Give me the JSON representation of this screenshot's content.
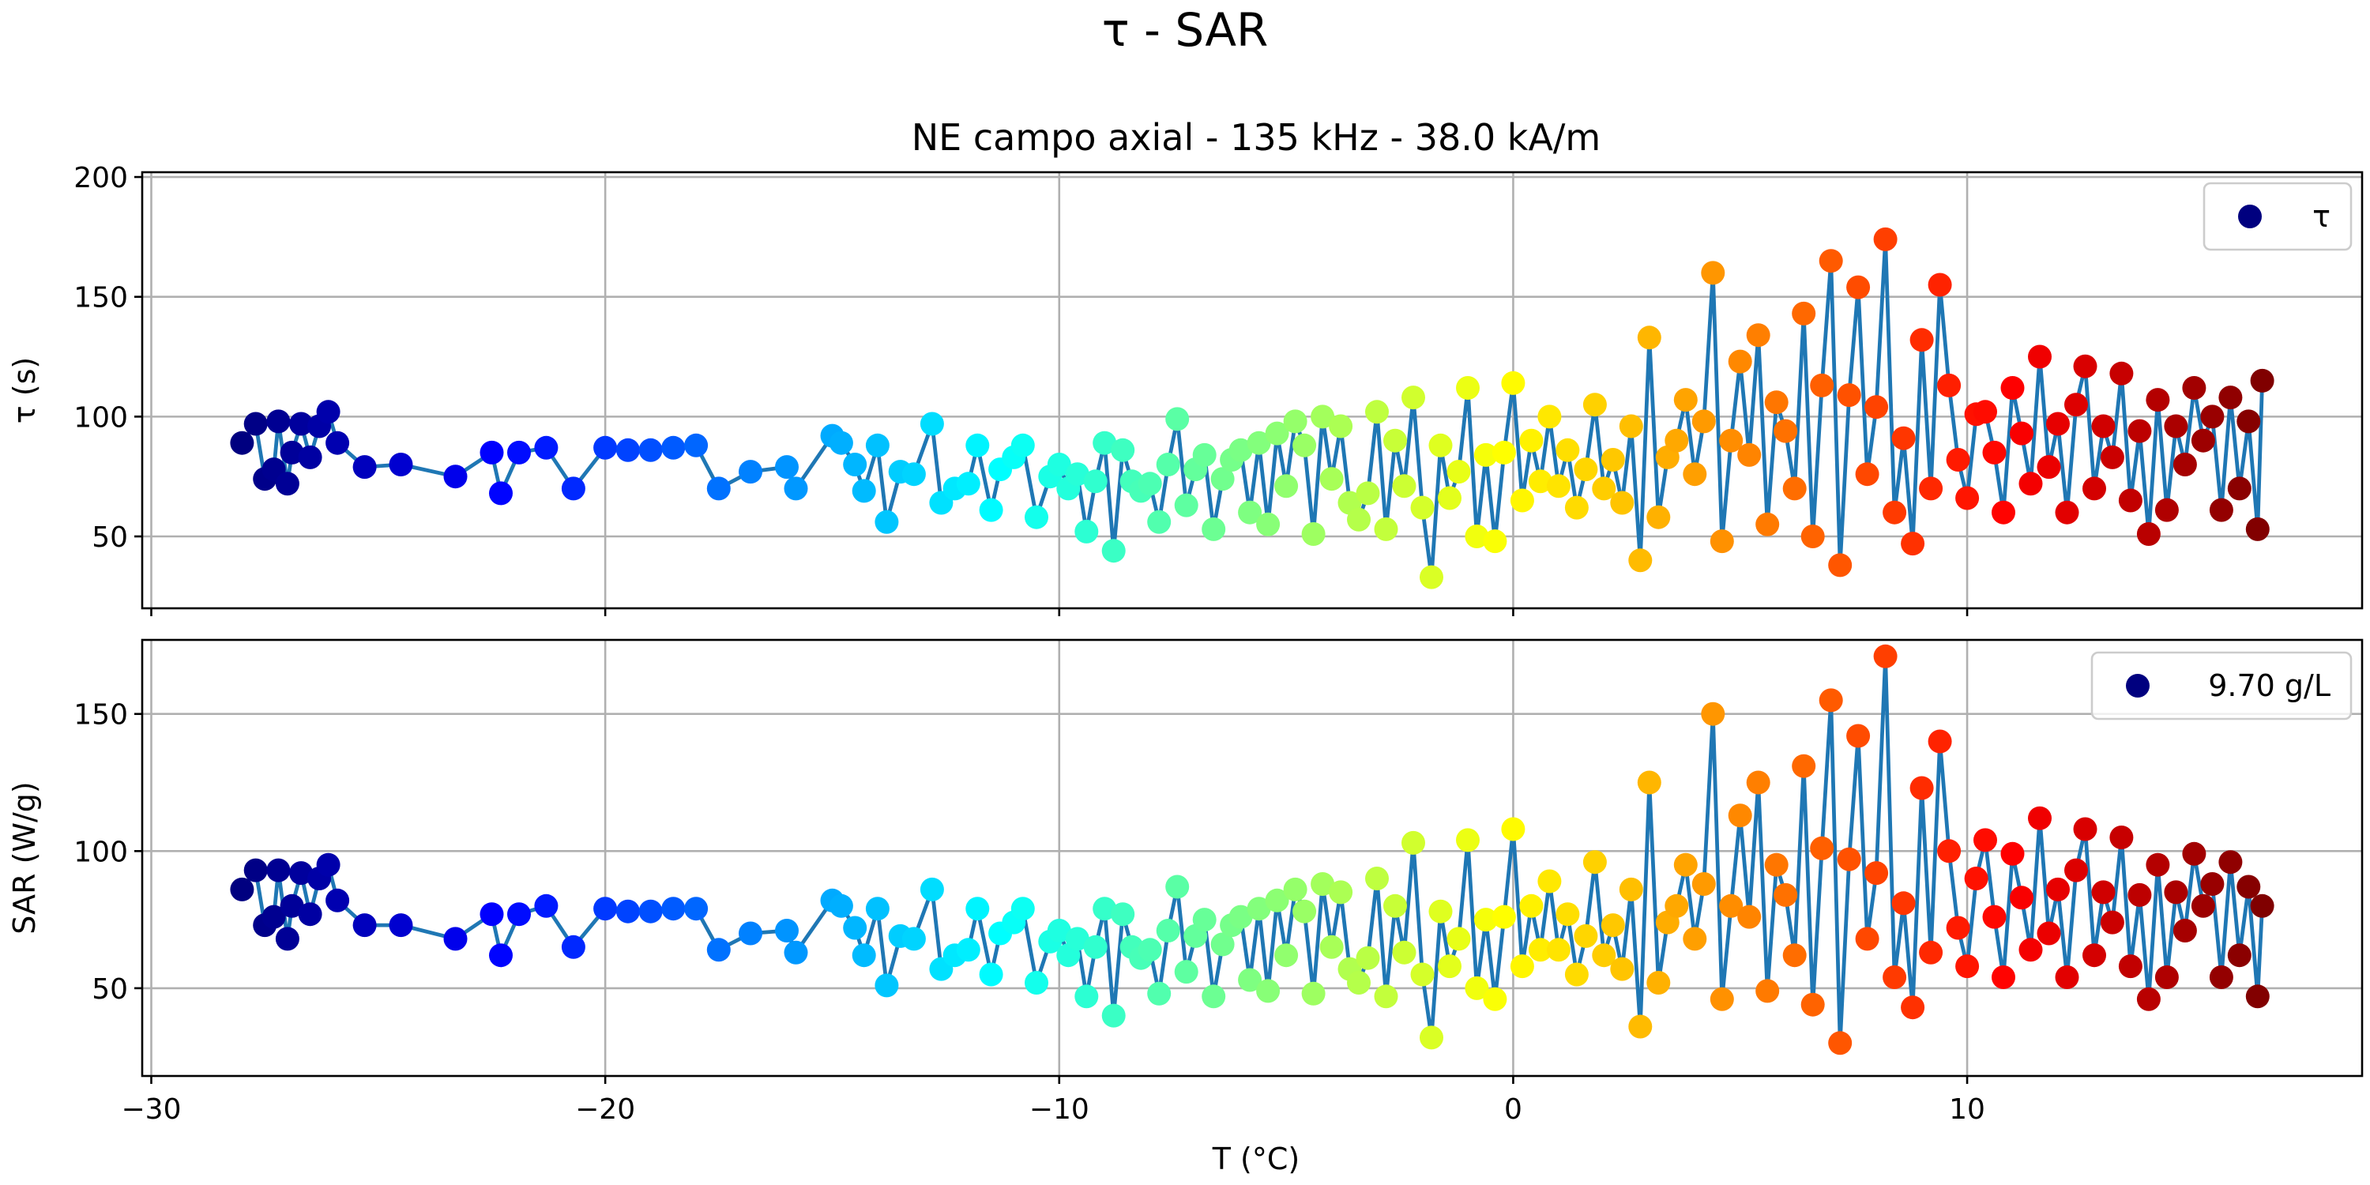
{
  "figure": {
    "suptitle": "τ - SAR"
  },
  "chart_data": [
    {
      "type": "scatter",
      "title": "NE campo axial - 135 kHz - 38.0 kA/m",
      "xlabel": "",
      "ylabel": "τ (s)",
      "xlim": [
        -30.2,
        18.7
      ],
      "ylim": [
        20,
        202
      ],
      "xticks": [
        -30,
        -20,
        -10,
        0,
        10
      ],
      "xtick_labels": [],
      "yticks": [
        50,
        100,
        150,
        200
      ],
      "ytick_labels": [
        "50",
        "100",
        "150",
        "200"
      ],
      "grid": true,
      "legend": {
        "label": "τ",
        "position": "upper-right"
      },
      "colormap": "jet",
      "series": [
        {
          "x": [
            -28.0,
            -27.7,
            -27.5,
            -27.3,
            -27.2,
            -27.0,
            -26.9,
            -26.7,
            -26.5,
            -26.3,
            -26.1,
            -25.9,
            -25.3,
            -24.5,
            -23.3,
            -22.5,
            -22.3,
            -21.9,
            -21.3,
            -20.7,
            -20.0,
            -19.5,
            -19.0,
            -18.5,
            -18.0,
            -17.5,
            -16.8,
            -16.0,
            -15.8,
            -15.0,
            -14.8,
            -14.5,
            -14.3,
            -14.0,
            -13.8,
            -13.5,
            -13.2,
            -12.8,
            -12.6,
            -12.3,
            -12.0,
            -11.8,
            -11.5,
            -11.3,
            -11.0,
            -10.8,
            -10.5,
            -10.2,
            -10.0,
            -9.8,
            -9.6,
            -9.4,
            -9.2,
            -9.0,
            -8.8,
            -8.6,
            -8.4,
            -8.2,
            -8.0,
            -7.8,
            -7.6,
            -7.4,
            -7.2,
            -7.0,
            -6.8,
            -6.6,
            -6.4,
            -6.2,
            -6.0,
            -5.8,
            -5.6,
            -5.4,
            -5.2,
            -5.0,
            -4.8,
            -4.6,
            -4.4,
            -4.2,
            -4.0,
            -3.8,
            -3.6,
            -3.4,
            -3.2,
            -3.0,
            -2.8,
            -2.6,
            -2.4,
            -2.2,
            -2.0,
            -1.8,
            -1.6,
            -1.4,
            -1.2,
            -1.0,
            -0.8,
            -0.6,
            -0.4,
            -0.2,
            0.0,
            0.2,
            0.4,
            0.6,
            0.8,
            1.0,
            1.2,
            1.4,
            1.6,
            1.8,
            2.0,
            2.2,
            2.4,
            2.6,
            2.8,
            3.0,
            3.2,
            3.4,
            3.6,
            3.8,
            4.0,
            4.2,
            4.4,
            4.6,
            4.8,
            5.0,
            5.2,
            5.4,
            5.6,
            5.8,
            6.0,
            6.2,
            6.4,
            6.6,
            6.8,
            7.0,
            7.2,
            7.4,
            7.6,
            7.8,
            8.0,
            8.2,
            8.4,
            8.6,
            8.8,
            9.0,
            9.2,
            9.4,
            9.6,
            9.8,
            10.0,
            10.2,
            10.4,
            10.6,
            10.8,
            11.0,
            11.2,
            11.4,
            11.6,
            11.8,
            12.0,
            12.2,
            12.4,
            12.6,
            12.8,
            13.0,
            13.2,
            13.4,
            13.6,
            13.8,
            14.0,
            14.2,
            14.4,
            14.6,
            14.8,
            15.0,
            15.2,
            15.4,
            15.6,
            15.8,
            16.0,
            16.2,
            16.4,
            16.5
          ],
          "y": [
            89,
            97,
            74,
            78,
            98,
            72,
            85,
            97,
            83,
            96,
            102,
            89,
            79,
            80,
            75,
            85,
            68,
            85,
            87,
            70,
            87,
            86,
            86,
            87,
            88,
            70,
            77,
            79,
            70,
            92,
            89,
            80,
            69,
            88,
            56,
            77,
            76,
            97,
            64,
            70,
            72,
            88,
            61,
            78,
            83,
            88,
            58,
            75,
            80,
            70,
            76,
            52,
            73,
            89,
            44,
            86,
            73,
            69,
            72,
            56,
            80,
            99,
            63,
            78,
            84,
            53,
            74,
            82,
            86,
            60,
            89,
            55,
            93,
            71,
            98,
            88,
            51,
            100,
            74,
            96,
            64,
            57,
            68,
            102,
            53,
            90,
            71,
            108,
            62,
            33,
            88,
            66,
            77,
            112,
            50,
            84,
            48,
            85,
            114,
            65,
            90,
            73,
            100,
            71,
            86,
            62,
            78,
            105,
            70,
            82,
            64,
            96,
            40,
            133,
            58,
            83,
            90,
            107,
            76,
            98,
            160,
            48,
            90,
            123,
            84,
            134,
            55,
            106,
            94,
            70,
            143,
            50,
            113,
            165,
            38,
            109,
            154,
            76,
            104,
            174,
            60,
            91,
            47,
            132,
            70,
            155,
            113,
            82,
            66,
            101,
            102,
            85,
            60,
            112,
            93,
            72,
            125,
            79,
            97,
            60,
            105,
            121,
            70,
            96,
            83,
            118,
            65,
            94,
            51,
            107,
            61,
            96,
            80,
            112,
            90,
            100,
            61,
            108,
            70,
            98,
            53,
            115
          ]
        }
      ]
    },
    {
      "type": "scatter",
      "title": "",
      "xlabel": "T (°C)",
      "ylabel": "SAR (W/g)",
      "xlim": [
        -30.2,
        18.7
      ],
      "ylim": [
        18,
        177
      ],
      "xticks": [
        -30,
        -20,
        -10,
        0,
        10
      ],
      "xtick_labels": [
        "−30",
        "−20",
        "−10",
        "0",
        "10"
      ],
      "yticks": [
        50,
        100,
        150
      ],
      "ytick_labels": [
        "50",
        "100",
        "150"
      ],
      "grid": true,
      "legend": {
        "label": "9.70 g/L",
        "position": "upper-right"
      },
      "colormap": "jet",
      "series": [
        {
          "x": [
            -28.0,
            -27.7,
            -27.5,
            -27.3,
            -27.2,
            -27.0,
            -26.9,
            -26.7,
            -26.5,
            -26.3,
            -26.1,
            -25.9,
            -25.3,
            -24.5,
            -23.3,
            -22.5,
            -22.3,
            -21.9,
            -21.3,
            -20.7,
            -20.0,
            -19.5,
            -19.0,
            -18.5,
            -18.0,
            -17.5,
            -16.8,
            -16.0,
            -15.8,
            -15.0,
            -14.8,
            -14.5,
            -14.3,
            -14.0,
            -13.8,
            -13.5,
            -13.2,
            -12.8,
            -12.6,
            -12.3,
            -12.0,
            -11.8,
            -11.5,
            -11.3,
            -11.0,
            -10.8,
            -10.5,
            -10.2,
            -10.0,
            -9.8,
            -9.6,
            -9.4,
            -9.2,
            -9.0,
            -8.8,
            -8.6,
            -8.4,
            -8.2,
            -8.0,
            -7.8,
            -7.6,
            -7.4,
            -7.2,
            -7.0,
            -6.8,
            -6.6,
            -6.4,
            -6.2,
            -6.0,
            -5.8,
            -5.6,
            -5.4,
            -5.2,
            -5.0,
            -4.8,
            -4.6,
            -4.4,
            -4.2,
            -4.0,
            -3.8,
            -3.6,
            -3.4,
            -3.2,
            -3.0,
            -2.8,
            -2.6,
            -2.4,
            -2.2,
            -2.0,
            -1.8,
            -1.6,
            -1.4,
            -1.2,
            -1.0,
            -0.8,
            -0.6,
            -0.4,
            -0.2,
            0.0,
            0.2,
            0.4,
            0.6,
            0.8,
            1.0,
            1.2,
            1.4,
            1.6,
            1.8,
            2.0,
            2.2,
            2.4,
            2.6,
            2.8,
            3.0,
            3.2,
            3.4,
            3.6,
            3.8,
            4.0,
            4.2,
            4.4,
            4.6,
            4.8,
            5.0,
            5.2,
            5.4,
            5.6,
            5.8,
            6.0,
            6.2,
            6.4,
            6.6,
            6.8,
            7.0,
            7.2,
            7.4,
            7.6,
            7.8,
            8.0,
            8.2,
            8.4,
            8.6,
            8.8,
            9.0,
            9.2,
            9.4,
            9.6,
            9.8,
            10.0,
            10.2,
            10.4,
            10.6,
            10.8,
            11.0,
            11.2,
            11.4,
            11.6,
            11.8,
            12.0,
            12.2,
            12.4,
            12.6,
            12.8,
            13.0,
            13.2,
            13.4,
            13.6,
            13.8,
            14.0,
            14.2,
            14.4,
            14.6,
            14.8,
            15.0,
            15.2,
            15.4,
            15.6,
            15.8,
            16.0,
            16.2,
            16.4,
            16.5
          ],
          "y": [
            86,
            93,
            73,
            76,
            93,
            68,
            80,
            92,
            77,
            90,
            95,
            82,
            73,
            73,
            68,
            77,
            62,
            77,
            80,
            65,
            79,
            78,
            78,
            79,
            79,
            64,
            70,
            71,
            63,
            82,
            80,
            72,
            62,
            79,
            51,
            69,
            68,
            86,
            57,
            62,
            64,
            79,
            55,
            70,
            74,
            79,
            52,
            67,
            71,
            62,
            68,
            47,
            65,
            79,
            40,
            77,
            65,
            61,
            64,
            48,
            71,
            87,
            56,
            69,
            75,
            47,
            66,
            73,
            76,
            53,
            79,
            49,
            82,
            62,
            86,
            78,
            48,
            88,
            65,
            85,
            57,
            52,
            61,
            90,
            47,
            80,
            63,
            103,
            55,
            32,
            78,
            58,
            68,
            104,
            50,
            75,
            46,
            76,
            108,
            58,
            80,
            64,
            89,
            64,
            77,
            55,
            69,
            96,
            62,
            73,
            57,
            86,
            36,
            125,
            52,
            74,
            80,
            95,
            68,
            88,
            150,
            46,
            80,
            113,
            76,
            125,
            49,
            95,
            84,
            62,
            131,
            44,
            101,
            155,
            30,
            97,
            142,
            68,
            92,
            171,
            54,
            81,
            43,
            123,
            63,
            140,
            100,
            72,
            58,
            90,
            104,
            76,
            54,
            99,
            83,
            64,
            112,
            70,
            86,
            54,
            93,
            108,
            62,
            85,
            74,
            105,
            58,
            84,
            46,
            95,
            54,
            85,
            71,
            99,
            80,
            88,
            54,
            96,
            62,
            87,
            47,
            80
          ]
        }
      ]
    }
  ]
}
